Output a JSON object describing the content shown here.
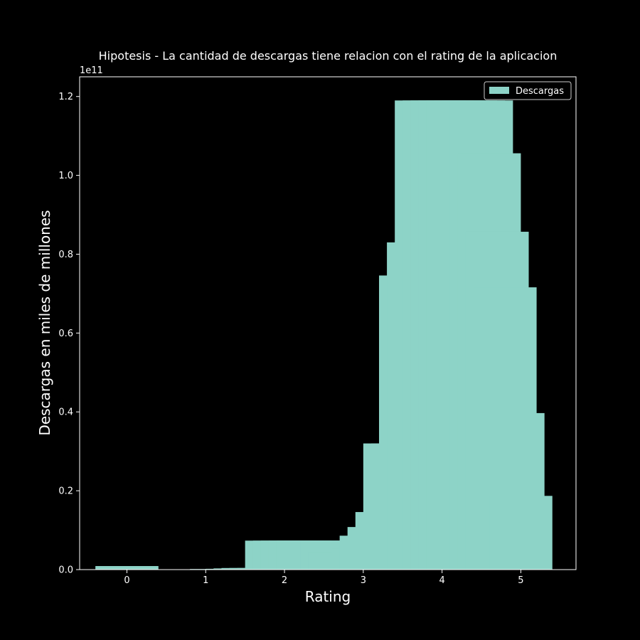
{
  "chart_data": {
    "type": "bar",
    "title": "Hipotesis - La cantidad de descargas tiene relacion con el rating de la aplicacion",
    "xlabel": "Rating",
    "ylabel": "Descargas en miles de millones",
    "y_offset_label": "1e11",
    "xlim": [
      -0.6,
      5.7
    ],
    "ylim": [
      0,
      1.25
    ],
    "x_ticks": [
      0,
      1,
      2,
      3,
      4,
      5
    ],
    "x_tick_labels": [
      "0",
      "1",
      "2",
      "3",
      "4",
      "5"
    ],
    "y_ticks": [
      0,
      0.2,
      0.4,
      0.6,
      0.8,
      1.0,
      1.2
    ],
    "y_tick_labels": [
      "0.0",
      "0.2",
      "0.4",
      "0.6",
      "0.8",
      "1.0",
      "1.2"
    ],
    "legend": {
      "position": "top-right",
      "entries": [
        "Descargas"
      ]
    },
    "colors": {
      "bar": "#8dd3c7",
      "background": "#000000",
      "text": "#ffffff"
    },
    "bar_width": 0.8,
    "series": [
      {
        "name": "Descargas",
        "x": [
          0.0,
          1.2,
          1.4,
          1.5,
          1.6,
          1.7,
          1.8,
          1.9,
          2.0,
          2.1,
          2.2,
          2.3,
          2.4,
          2.5,
          2.6,
          2.7,
          2.8,
          2.9,
          3.0,
          3.1,
          3.2,
          3.3,
          3.4,
          3.5,
          3.6,
          3.7,
          3.8,
          3.9,
          4.0,
          4.1,
          4.2,
          4.3,
          4.4,
          4.5,
          4.6,
          4.7,
          4.8,
          4.9,
          5.0
        ],
        "values": [
          0.009,
          0.0015,
          0.002,
          0.003,
          0.004,
          0.004,
          0.004,
          0.0735,
          0.0735,
          0.0735,
          0.0735,
          0.0735,
          0.0735,
          0.0735,
          0.0735,
          0.045,
          0.045,
          0.045,
          0.054,
          0.086,
          0.108,
          0.146,
          0.32,
          0.32,
          0.746,
          0.83,
          1.19,
          1.19,
          1.19,
          1.19,
          1.19,
          1.19,
          1.19,
          1.19,
          1.056,
          0.857,
          0.716,
          0.397,
          0.187
        ]
      }
    ]
  }
}
